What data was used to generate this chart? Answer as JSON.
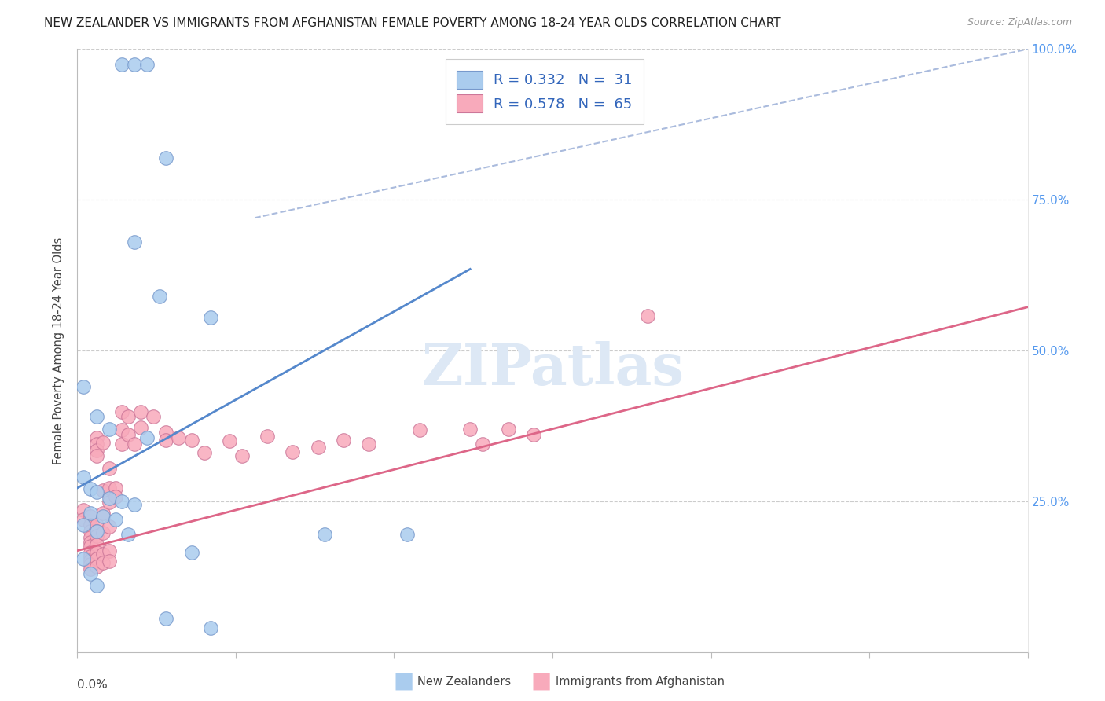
{
  "title": "NEW ZEALANDER VS IMMIGRANTS FROM AFGHANISTAN FEMALE POVERTY AMONG 18-24 YEAR OLDS CORRELATION CHART",
  "source": "Source: ZipAtlas.com",
  "ylabel": "Female Poverty Among 18-24 Year Olds",
  "background_color": "#ffffff",
  "watermark_text": "ZIPatlas",
  "legend_line1": "R = 0.332   N =  31",
  "legend_line2": "R = 0.578   N =  65",
  "nz_color": "#aaccee",
  "nz_edge_color": "#7799cc",
  "afg_color": "#f8aabb",
  "afg_edge_color": "#cc7799",
  "nz_line_color": "#5588cc",
  "afg_line_color": "#dd6688",
  "diagonal_color": "#aabbdd",
  "grid_color": "#cccccc",
  "ytick_color": "#5599ee",
  "xlim": [
    0.0,
    0.15
  ],
  "ylim": [
    0.0,
    1.0
  ],
  "nz_line_x": [
    0.0,
    0.062
  ],
  "nz_line_y": [
    0.272,
    0.635
  ],
  "afg_line_x": [
    0.0,
    0.15
  ],
  "afg_line_y": [
    0.168,
    0.572
  ],
  "diag_line_x": [
    0.028,
    0.15
  ],
  "diag_line_y": [
    0.72,
    1.0
  ],
  "nz_points": [
    [
      0.007,
      0.975
    ],
    [
      0.009,
      0.975
    ],
    [
      0.011,
      0.975
    ],
    [
      0.014,
      0.82
    ],
    [
      0.009,
      0.68
    ],
    [
      0.013,
      0.59
    ],
    [
      0.021,
      0.555
    ],
    [
      0.001,
      0.44
    ],
    [
      0.003,
      0.39
    ],
    [
      0.005,
      0.37
    ],
    [
      0.011,
      0.355
    ],
    [
      0.001,
      0.29
    ],
    [
      0.002,
      0.27
    ],
    [
      0.003,
      0.265
    ],
    [
      0.005,
      0.255
    ],
    [
      0.007,
      0.25
    ],
    [
      0.009,
      0.245
    ],
    [
      0.002,
      0.23
    ],
    [
      0.004,
      0.225
    ],
    [
      0.006,
      0.22
    ],
    [
      0.001,
      0.21
    ],
    [
      0.003,
      0.2
    ],
    [
      0.008,
      0.195
    ],
    [
      0.001,
      0.155
    ],
    [
      0.002,
      0.13
    ],
    [
      0.003,
      0.11
    ],
    [
      0.039,
      0.195
    ],
    [
      0.052,
      0.195
    ],
    [
      0.018,
      0.165
    ],
    [
      0.014,
      0.055
    ],
    [
      0.021,
      0.04
    ]
  ],
  "afg_points": [
    [
      0.001,
      0.235
    ],
    [
      0.001,
      0.22
    ],
    [
      0.002,
      0.225
    ],
    [
      0.002,
      0.21
    ],
    [
      0.002,
      0.2
    ],
    [
      0.002,
      0.19
    ],
    [
      0.002,
      0.182
    ],
    [
      0.002,
      0.175
    ],
    [
      0.002,
      0.165
    ],
    [
      0.002,
      0.158
    ],
    [
      0.002,
      0.152
    ],
    [
      0.002,
      0.145
    ],
    [
      0.002,
      0.138
    ],
    [
      0.003,
      0.355
    ],
    [
      0.003,
      0.345
    ],
    [
      0.003,
      0.335
    ],
    [
      0.003,
      0.325
    ],
    [
      0.003,
      0.21
    ],
    [
      0.003,
      0.2
    ],
    [
      0.003,
      0.192
    ],
    [
      0.003,
      0.178
    ],
    [
      0.003,
      0.165
    ],
    [
      0.003,
      0.155
    ],
    [
      0.003,
      0.142
    ],
    [
      0.004,
      0.348
    ],
    [
      0.004,
      0.268
    ],
    [
      0.004,
      0.23
    ],
    [
      0.004,
      0.198
    ],
    [
      0.004,
      0.162
    ],
    [
      0.004,
      0.148
    ],
    [
      0.005,
      0.305
    ],
    [
      0.005,
      0.272
    ],
    [
      0.005,
      0.248
    ],
    [
      0.005,
      0.208
    ],
    [
      0.005,
      0.168
    ],
    [
      0.005,
      0.15
    ],
    [
      0.006,
      0.272
    ],
    [
      0.006,
      0.258
    ],
    [
      0.007,
      0.398
    ],
    [
      0.007,
      0.368
    ],
    [
      0.007,
      0.345
    ],
    [
      0.008,
      0.39
    ],
    [
      0.008,
      0.36
    ],
    [
      0.009,
      0.345
    ],
    [
      0.01,
      0.398
    ],
    [
      0.01,
      0.372
    ],
    [
      0.012,
      0.39
    ],
    [
      0.014,
      0.365
    ],
    [
      0.014,
      0.352
    ],
    [
      0.016,
      0.355
    ],
    [
      0.018,
      0.352
    ],
    [
      0.02,
      0.33
    ],
    [
      0.024,
      0.35
    ],
    [
      0.026,
      0.325
    ],
    [
      0.03,
      0.358
    ],
    [
      0.034,
      0.332
    ],
    [
      0.038,
      0.34
    ],
    [
      0.042,
      0.352
    ],
    [
      0.046,
      0.345
    ],
    [
      0.054,
      0.368
    ],
    [
      0.062,
      0.37
    ],
    [
      0.064,
      0.345
    ],
    [
      0.068,
      0.37
    ],
    [
      0.072,
      0.36
    ],
    [
      0.09,
      0.558
    ]
  ]
}
